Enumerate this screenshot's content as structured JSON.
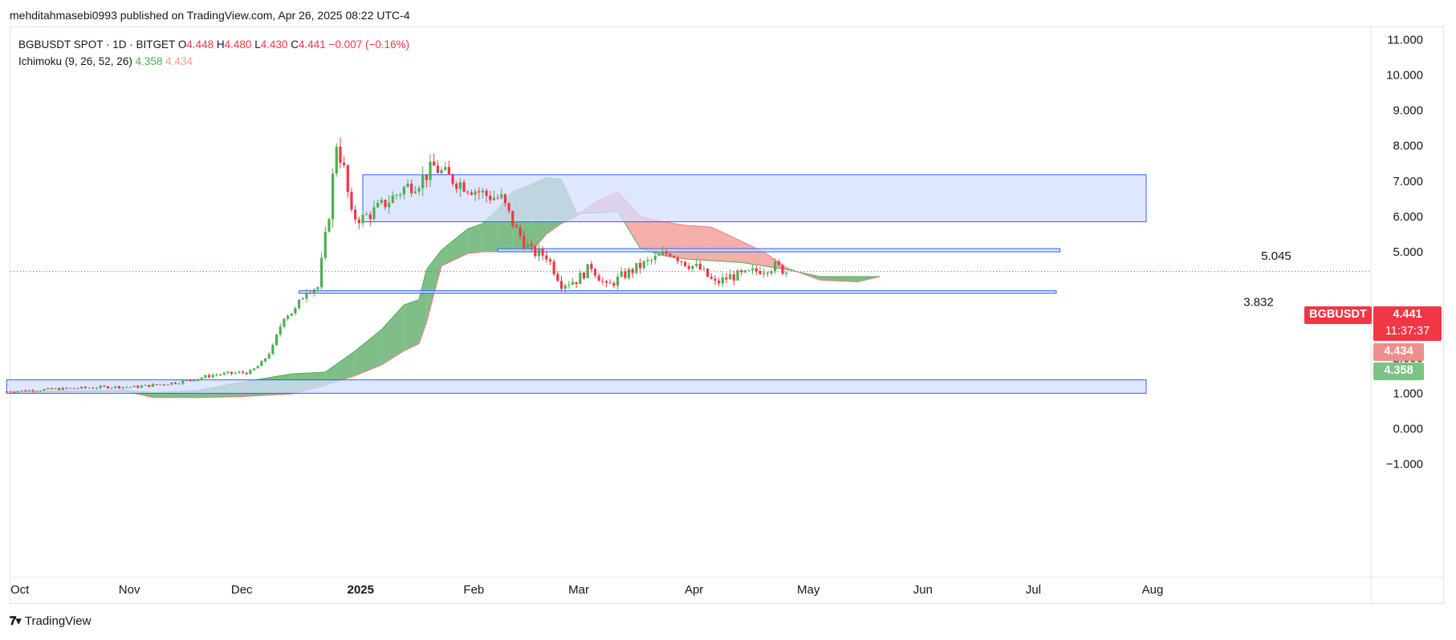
{
  "publisher": "mehditahmasebi0993 published on TradingView.com, Apr 26, 2025 08:22 UTC-4",
  "legend": {
    "symbol": "BGBUSDT SPOT · 1D · BITGET",
    "o_label": "O",
    "o": "4.448",
    "h_label": "H",
    "h": "4.480",
    "l_label": "L",
    "l": "4.430",
    "c_label": "C",
    "c": "4.441",
    "change": "−0.007 (−0.16%)",
    "indicator": "Ichimoku (9, 26, 52, 26)",
    "ind_v1": "4.358",
    "ind_v2": "4.434"
  },
  "tags": {
    "symbol_tag": "BGBUSDT",
    "price": "4.441",
    "countdown": "11:37:37",
    "span_a": "4.434",
    "span_b": "4.358"
  },
  "footer": {
    "brand": "TradingView",
    "logo_icon": "tradingview-logo-icon"
  },
  "colors": {
    "up": "#4caf50",
    "down": "#f23645",
    "cloud_bull": "#5fae6a",
    "cloud_bear": "#f3a09b",
    "zone_fill": "#d4deff",
    "zone_border": "#2962ff",
    "price_line": "#f23645"
  },
  "chart_data": {
    "type": "candlestick",
    "y_axis_ticks": [
      "11.000",
      "10.000",
      "9.000",
      "8.000",
      "7.000",
      "6.000",
      "5.000",
      "2.000",
      "1.000",
      "0.000",
      "−1.000"
    ],
    "x_axis_ticks": [
      "Oct",
      "Nov",
      "Dec",
      "2025",
      "Feb",
      "Mar",
      "Apr",
      "May",
      "Jun",
      "Jul",
      "Aug"
    ],
    "ylim": [
      -1.6,
      11.3
    ],
    "current_price": 4.441,
    "level_labels": [
      {
        "text": "5.045",
        "value": 5.045
      },
      {
        "text": "3.832",
        "value": 3.832
      }
    ],
    "zones": [
      {
        "from": "2025-01-03",
        "to": "2025-07-31",
        "low": 5.85,
        "high": 7.18
      },
      {
        "from": "2025-02-08",
        "to": "2025-07-08",
        "low": 5.0,
        "high": 5.09
      },
      {
        "from": "2024-12-17",
        "to": "2025-07-07",
        "low": 3.83,
        "high": 3.9
      },
      {
        "from": "2024-09-30",
        "to": "2025-07-31",
        "low": 1.0,
        "high": 1.38
      }
    ],
    "close_series": {
      "dates": [
        "2024-09-30",
        "2024-10-06",
        "2024-10-13",
        "2024-10-20",
        "2024-10-27",
        "2024-11-03",
        "2024-11-10",
        "2024-11-17",
        "2024-11-24",
        "2024-12-01",
        "2024-12-04",
        "2024-12-07",
        "2024-12-10",
        "2024-12-13",
        "2024-12-16",
        "2024-12-19",
        "2024-12-22",
        "2024-12-25",
        "2024-12-27",
        "2024-12-29",
        "2024-12-31",
        "2025-01-03",
        "2025-01-06",
        "2025-01-10",
        "2025-01-14",
        "2025-01-18",
        "2025-01-22",
        "2025-01-26",
        "2025-01-29",
        "2025-02-01",
        "2025-02-05",
        "2025-02-09",
        "2025-02-13",
        "2025-02-17",
        "2025-02-21",
        "2025-02-25",
        "2025-03-01",
        "2025-03-05",
        "2025-03-09",
        "2025-03-13",
        "2025-03-18",
        "2025-03-22",
        "2025-03-26",
        "2025-03-30",
        "2025-04-03",
        "2025-04-07",
        "2025-04-11",
        "2025-04-15",
        "2025-04-19",
        "2025-04-23",
        "2025-04-26"
      ],
      "closes": [
        1.05,
        1.08,
        1.12,
        1.15,
        1.18,
        1.18,
        1.25,
        1.35,
        1.52,
        1.58,
        1.6,
        1.85,
        2.3,
        3.2,
        3.35,
        3.95,
        4.0,
        6.1,
        8.1,
        7.3,
        6.0,
        5.95,
        6.15,
        6.45,
        6.8,
        7.0,
        7.4,
        7.1,
        6.95,
        6.8,
        6.6,
        6.5,
        5.6,
        5.0,
        4.9,
        4.1,
        4.2,
        4.6,
        4.0,
        4.3,
        4.6,
        4.8,
        5.0,
        4.7,
        4.5,
        4.1,
        4.3,
        4.35,
        4.5,
        4.6,
        4.44
      ]
    },
    "ichimoku_cloud": {
      "span_a": {
        "dates": [
          "2024-10-01",
          "2024-11-01",
          "2024-11-08",
          "2024-11-20",
          "2024-12-01",
          "2024-12-15",
          "2024-12-24",
          "2025-01-01",
          "2025-01-08",
          "2025-01-14",
          "2025-01-18",
          "2025-01-20",
          "2025-01-24",
          "2025-01-31",
          "2025-02-04",
          "2025-02-08",
          "2025-02-12",
          "2025-02-17",
          "2025-02-21",
          "2025-02-25",
          "2025-03-01",
          "2025-03-06",
          "2025-03-12",
          "2025-03-18",
          "2025-03-24",
          "2025-03-30",
          "2025-04-06",
          "2025-04-14",
          "2025-04-20",
          "2025-04-26",
          "2025-05-05",
          "2025-05-15",
          "2025-05-21"
        ],
        "values": [
          1.05,
          1.08,
          1.02,
          1.08,
          1.3,
          1.55,
          1.6,
          2.2,
          2.8,
          3.5,
          3.65,
          4.5,
          5.05,
          5.65,
          5.8,
          6.2,
          6.7,
          6.9,
          7.1,
          7.05,
          6.1,
          6.1,
          6.15,
          5.1,
          4.9,
          4.8,
          4.75,
          4.7,
          4.6,
          4.5,
          4.3,
          4.3,
          4.3
        ]
      },
      "span_b": {
        "dates": [
          "2024-10-01",
          "2024-11-01",
          "2024-11-08",
          "2024-11-20",
          "2024-12-01",
          "2024-12-15",
          "2024-12-24",
          "2025-01-01",
          "2025-01-08",
          "2025-01-14",
          "2025-01-18",
          "2025-01-20",
          "2025-01-24",
          "2025-01-31",
          "2025-02-04",
          "2025-02-08",
          "2025-02-12",
          "2025-02-17",
          "2025-02-21",
          "2025-02-25",
          "2025-03-01",
          "2025-03-06",
          "2025-03-12",
          "2025-03-18",
          "2025-03-24",
          "2025-03-30",
          "2025-04-06",
          "2025-04-14",
          "2025-04-20",
          "2025-04-26",
          "2025-05-05",
          "2025-05-15",
          "2025-05-21"
        ],
        "values": [
          1.02,
          1.05,
          0.88,
          0.88,
          0.9,
          0.98,
          1.22,
          1.5,
          1.8,
          2.2,
          2.4,
          3.0,
          4.6,
          4.95,
          5.0,
          5.0,
          5.0,
          5.0,
          5.5,
          5.8,
          6.0,
          6.4,
          6.7,
          6.0,
          5.85,
          5.75,
          5.7,
          5.3,
          5.0,
          4.55,
          4.2,
          4.15,
          4.3
        ]
      }
    }
  }
}
